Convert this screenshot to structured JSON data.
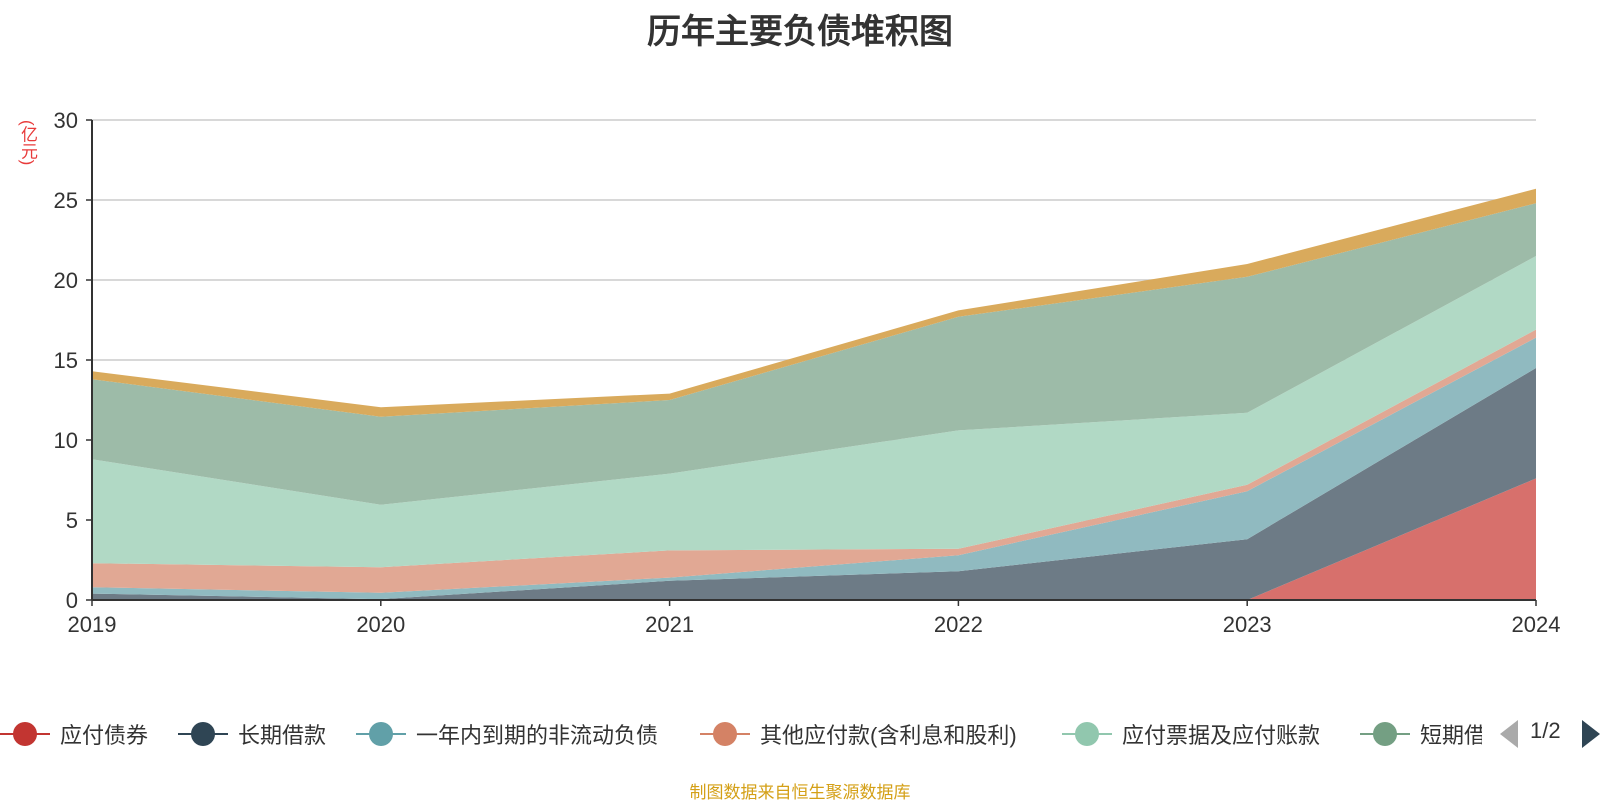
{
  "chart_data": {
    "type": "area",
    "stacked": true,
    "title": "历年主要负债堆积图",
    "unit_label": "(亿元)",
    "categories": [
      "2019",
      "2020",
      "2021",
      "2022",
      "2023",
      "2024"
    ],
    "ylim": [
      0,
      30
    ],
    "yticks": [
      "0",
      "5",
      "10",
      "15",
      "20",
      "25",
      "30"
    ],
    "grid": true,
    "legend_position": "bottom",
    "series": [
      {
        "name": "应付债券",
        "color": "#c23531",
        "fill": "#d7706c",
        "values": [
          0,
          0,
          0,
          0,
          0,
          7.6
        ]
      },
      {
        "name": "长期借款",
        "color": "#2f4554",
        "fill": "#6d7b86",
        "values": [
          0.4,
          0.05,
          1.2,
          1.8,
          3.8,
          6.9
        ]
      },
      {
        "name": "一年内到期的非流动负债",
        "color": "#61a0a8",
        "fill": "#90bac0",
        "values": [
          0.4,
          0.4,
          0.2,
          1.0,
          3.0,
          1.9
        ]
      },
      {
        "name": "其他应付款(含利息和股利)",
        "color": "#d48265",
        "fill": "#e1a894",
        "values": [
          1.5,
          1.6,
          1.7,
          0.4,
          0.4,
          0.5
        ]
      },
      {
        "name": "应付票据及应付账款",
        "color": "#91c7ae",
        "fill": "#b1d9c5",
        "values": [
          6.5,
          3.9,
          4.8,
          7.4,
          4.5,
          4.6
        ]
      },
      {
        "name": "短期借款",
        "color": "#749f83",
        "fill": "#9dbba8",
        "values": [
          5.0,
          5.5,
          4.6,
          7.1,
          8.5,
          3.3
        ]
      },
      {
        "name": "",
        "color": "#ca8622",
        "fill": "#d9aa5c",
        "values": [
          0.5,
          0.6,
          0.4,
          0.4,
          0.8,
          0.9
        ]
      }
    ]
  },
  "legend": {
    "items": [
      "应付债券",
      "长期借款",
      "一年内到期的非流动负债",
      "其他应付款(含利息和股利)",
      "应付票据及应付账款",
      "短期借款"
    ],
    "page_indicator": "1/2"
  },
  "source_note": "制图数据来自恒生聚源数据库"
}
